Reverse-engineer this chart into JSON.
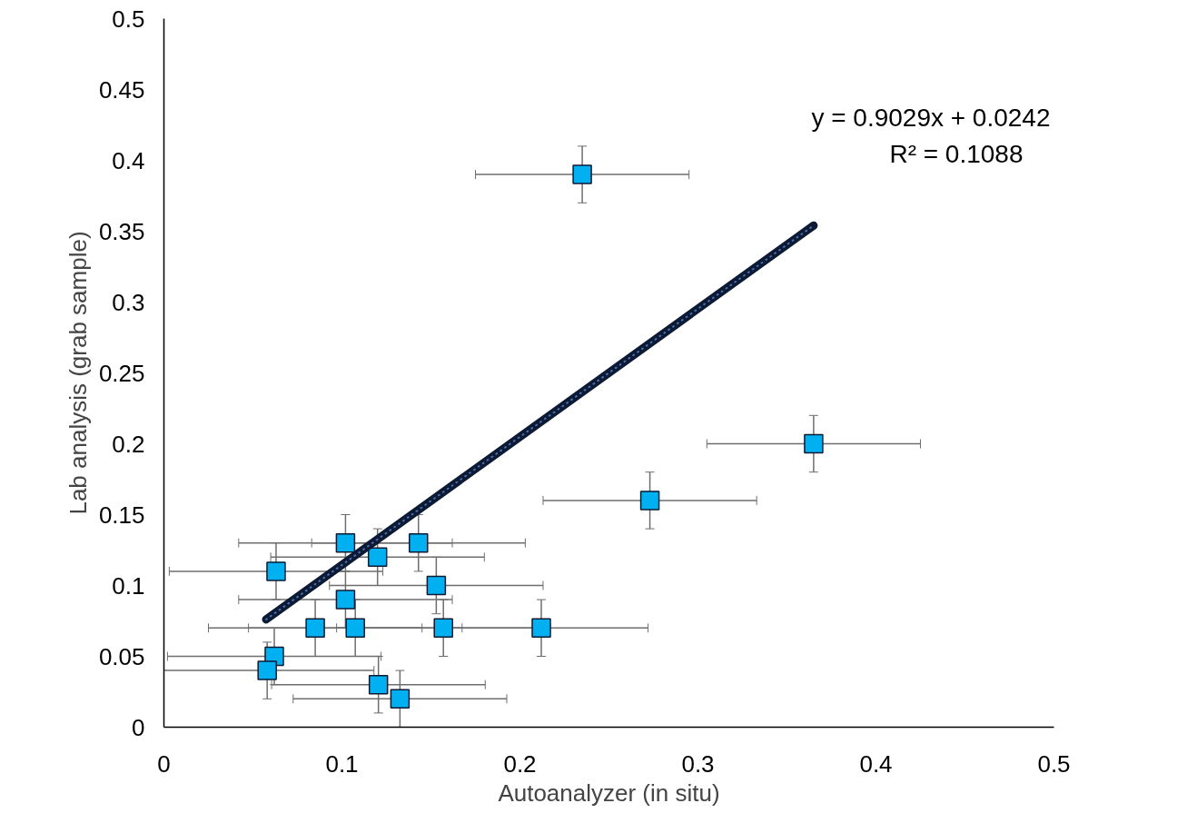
{
  "chart_data": {
    "type": "scatter",
    "xlabel": "Autoanalyzer (in situ)",
    "ylabel": "Lab analysis (grab sample)",
    "xlim": [
      0,
      0.5
    ],
    "ylim": [
      0,
      0.5
    ],
    "xticks": [
      0,
      0.1,
      0.2,
      0.3,
      0.4,
      0.5
    ],
    "yticks": [
      0,
      0.05,
      0.1,
      0.15,
      0.2,
      0.25,
      0.3,
      0.35,
      0.4,
      0.45,
      0.5
    ],
    "grid": false,
    "marker": "square",
    "annotations": [
      "y = 0.9029x + 0.0242",
      "R² = 0.1088"
    ],
    "series": [
      {
        "type": "scatter",
        "color": "#00b0f0",
        "x": [
          0.235,
          0.365,
          0.273,
          0.102,
          0.143,
          0.12,
          0.063,
          0.153,
          0.102,
          0.085,
          0.1075,
          0.157,
          0.212,
          0.062,
          0.058,
          0.1205,
          0.1326
        ],
        "values": [
          0.39,
          0.2,
          0.16,
          0.13,
          0.13,
          0.12,
          0.11,
          0.1,
          0.09,
          0.07,
          0.07,
          0.07,
          0.07,
          0.05,
          0.04,
          0.03,
          0.02
        ],
        "errors": [
          0.02,
          0.02,
          0.02,
          0.02,
          0.02,
          0.02,
          0.02,
          0.02,
          0.02,
          0.02,
          0.02,
          0.02,
          0.02,
          0.02,
          0.02,
          0.02,
          0.02
        ],
        "xerrors": [
          0.06,
          0.06,
          0.06,
          0.06,
          0.06,
          0.06,
          0.06,
          0.06,
          0.06,
          0.06,
          0.06,
          0.06,
          0.06,
          0.06,
          0.06,
          0.06,
          0.06
        ]
      },
      {
        "type": "line",
        "marker": "none",
        "color": "#0d1a33",
        "line_style": "solid",
        "x": [
          0.0574,
          0.365
        ],
        "values": [
          0.076,
          0.354
        ]
      }
    ]
  }
}
